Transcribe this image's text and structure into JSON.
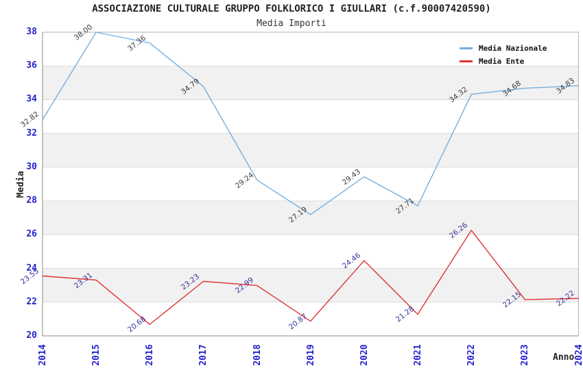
{
  "page": {
    "background": "#FFFFFF"
  },
  "chart_data": {
    "type": "line",
    "title": "ASSOCIAZIONE CULTURALE GRUPPO FOLKLORICO I GIULLARI (c.f.90007420590)",
    "subtitle": "Media Importi",
    "xlabel": "Anno",
    "ylabel": "Media",
    "x_categories": [
      "2014",
      "2015",
      "2016",
      "2017",
      "2018",
      "2019",
      "2020",
      "2021",
      "2022",
      "2023",
      "2024"
    ],
    "ylim": [
      20,
      38
    ],
    "yticks": [
      38,
      36,
      34,
      32,
      30,
      28,
      26,
      24,
      22,
      20
    ],
    "grid": "horizontal-gridlines-with-alternating-bands",
    "legend_position": "top-right",
    "series": [
      {
        "name": "Media Nazionale",
        "color": "#74ADE0",
        "label_color": "#3C3C3C",
        "values": [
          32.82,
          38.0,
          37.36,
          34.79,
          29.24,
          27.19,
          29.43,
          27.71,
          34.32,
          34.68,
          34.83
        ]
      },
      {
        "name": "Media Ente",
        "color": "#E03232",
        "label_color": "#333399",
        "values": [
          23.55,
          23.31,
          20.68,
          23.23,
          22.99,
          20.87,
          24.46,
          21.28,
          26.26,
          22.15,
          22.22
        ]
      }
    ],
    "colors": {
      "tick_label": "#2222CC",
      "axis_title": "#222222",
      "band_fill": "#F1F1F1",
      "gridline": "#DCDCDC",
      "frame": "#B2B2B2",
      "axis_line": "#8A8A8A",
      "title_text": "#222222",
      "subtitle_text": "#333333"
    }
  }
}
